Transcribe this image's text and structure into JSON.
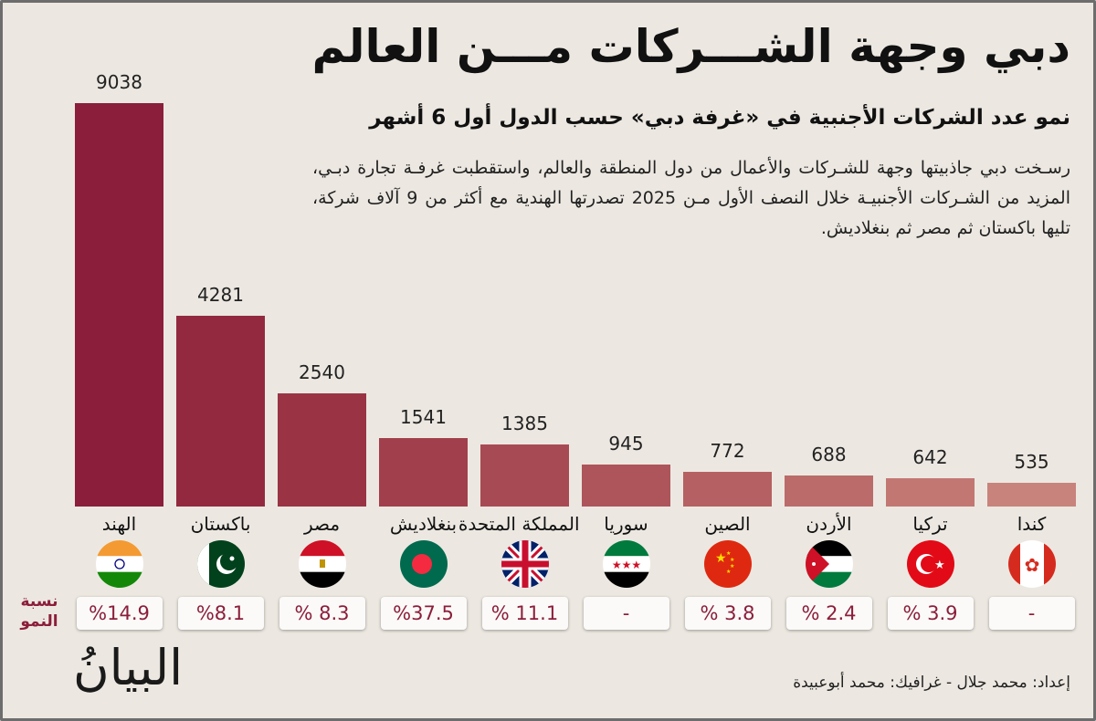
{
  "header": {
    "title": "دبي وجهة الشـــركات مـــن العالم",
    "subtitle": "نمو عدد الشركات الأجنبية في «غرفة دبي» حسب الدول أول 6 أشهر",
    "paragraph": "رسـخت دبي جاذبيتها وجهة للشـركات والأعمال من دول المنطقة والعالم، واستقطبت غرفـة تجارة دبـي، المزيد من الشـركات الأجنبيـة خلال النصف الأول مـن 2025 تصدرتها الهندية مع أكثر من 9 آلاف شركة، تليها باكستان ثم مصر ثم بنغلاديش."
  },
  "growth_label": "نسبة النمو",
  "footer": {
    "logo": "البيانُ",
    "credit": "إعداد: محمد جلال - غرافيك: محمد أبوعبيدة"
  },
  "chart_data": {
    "type": "bar",
    "title": "نمو عدد الشركات الأجنبية في «غرفة دبي» حسب الدول أول 6 أشهر",
    "categories": [
      "الهند",
      "باكستان",
      "مصر",
      "بنغلاديش",
      "المملكة المتحدة",
      "سوريا",
      "الصين",
      "الأردن",
      "تركيا",
      "كندا"
    ],
    "values": [
      9038,
      4281,
      2540,
      1541,
      1385,
      945,
      772,
      688,
      642,
      535
    ],
    "labels": [
      "9038",
      "4281",
      "2540",
      "1541",
      "1385",
      "945",
      "772",
      "688",
      "642",
      "535"
    ],
    "growth": [
      "%14.9",
      "%8.1",
      "% 8.3",
      "%37.5",
      "% 11.1",
      "-",
      "% 3.8",
      "% 2.4",
      "% 3.9",
      "-"
    ],
    "flags": [
      "india",
      "pakistan",
      "egypt",
      "bangladesh",
      "uk",
      "syria",
      "china",
      "jordan",
      "turkey",
      "canada"
    ],
    "colors": [
      "#8b1e3a",
      "#93293f",
      "#9a3445",
      "#a13f4c",
      "#a84a53",
      "#ae555b",
      "#b56062",
      "#bb6b6a",
      "#c27773",
      "#c8837c"
    ],
    "ylim": [
      0,
      9038
    ],
    "grid": false,
    "xlabel": "",
    "ylabel": ""
  }
}
